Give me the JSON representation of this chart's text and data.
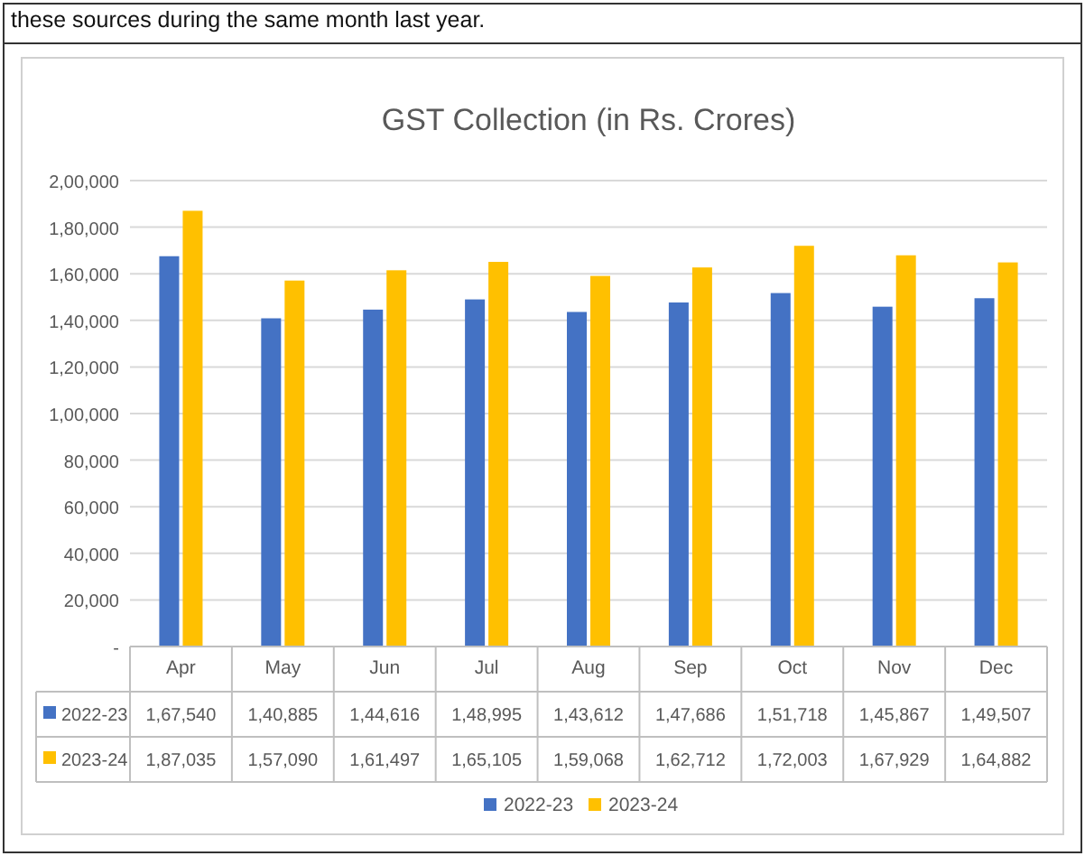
{
  "chart_data": {
    "type": "bar",
    "title": "GST Collection (in Rs. Crores)",
    "annotations": [
      "these sources during the same month last year."
    ],
    "categories": [
      "Apr",
      "May",
      "Jun",
      "Jul",
      "Aug",
      "Sep",
      "Oct",
      "Nov",
      "Dec"
    ],
    "series": [
      {
        "name": "2022-23",
        "color": "#4472c4",
        "values": [
          167540,
          140885,
          144616,
          148995,
          143612,
          147686,
          151718,
          145867,
          149507
        ],
        "value_labels": [
          "1,67,540",
          "1,40,885",
          "1,44,616",
          "1,48,995",
          "1,43,612",
          "1,47,686",
          "1,51,718",
          "1,45,867",
          "1,49,507"
        ]
      },
      {
        "name": "2023-24",
        "color": "#ffc000",
        "values": [
          187035,
          157090,
          161497,
          165105,
          159068,
          162712,
          172003,
          167929,
          164882
        ],
        "value_labels": [
          "1,87,035",
          "1,57,090",
          "1,61,497",
          "1,65,105",
          "1,59,068",
          "1,62,712",
          "1,72,003",
          "1,67,929",
          "1,64,882"
        ]
      }
    ],
    "ylim": [
      0,
      200000
    ],
    "yticks": [
      {
        "value": 0,
        "label": "-"
      },
      {
        "value": 20000,
        "label": "20,000"
      },
      {
        "value": 40000,
        "label": "40,000"
      },
      {
        "value": 60000,
        "label": "60,000"
      },
      {
        "value": 80000,
        "label": "80,000"
      },
      {
        "value": 100000,
        "label": "1,00,000"
      },
      {
        "value": 120000,
        "label": "1,20,000"
      },
      {
        "value": 140000,
        "label": "1,40,000"
      },
      {
        "value": 160000,
        "label": "1,60,000"
      },
      {
        "value": 180000,
        "label": "1,80,000"
      },
      {
        "value": 200000,
        "label": "2,00,000"
      }
    ],
    "grid": "y",
    "legend": "bottom"
  }
}
